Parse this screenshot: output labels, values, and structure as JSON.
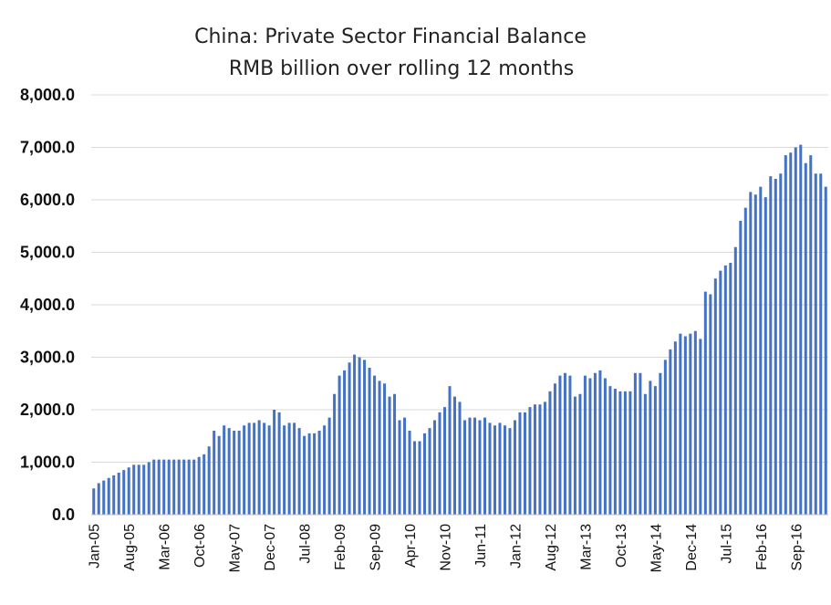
{
  "chart_data": {
    "type": "bar",
    "title": "China: Private Sector Financial Balance",
    "subtitle": "RMB billion over rolling 12 months",
    "xlabel": "",
    "ylabel": "",
    "ylim": [
      0,
      8000
    ],
    "yticks": [
      "0.0",
      "1,000.0",
      "2,000.0",
      "3,000.0",
      "4,000.0",
      "5,000.0",
      "6,000.0",
      "7,000.0",
      "8,000.0"
    ],
    "start_month": "Jan-05",
    "tick_labels": [
      "Jan-05",
      "Aug-05",
      "Mar-06",
      "Oct-06",
      "May-07",
      "Dec-07",
      "Jul-08",
      "Feb-09",
      "Sep-09",
      "Apr-10",
      "Nov-10",
      "Jun-11",
      "Jan-12",
      "Aug-12",
      "Mar-13",
      "Oct-13",
      "May-14",
      "Dec-14",
      "Jul-15",
      "Feb-16",
      "Sep-16"
    ],
    "bar_color": "#4472c4",
    "grid": true,
    "values": [
      500,
      600,
      650,
      700,
      750,
      800,
      850,
      900,
      950,
      950,
      950,
      1000,
      1050,
      1050,
      1050,
      1050,
      1050,
      1050,
      1050,
      1050,
      1050,
      1100,
      1150,
      1300,
      1600,
      1500,
      1700,
      1650,
      1600,
      1600,
      1700,
      1750,
      1750,
      1800,
      1750,
      1700,
      2000,
      1950,
      1700,
      1750,
      1750,
      1650,
      1500,
      1550,
      1550,
      1600,
      1700,
      1850,
      2300,
      2650,
      2750,
      2900,
      3050,
      3000,
      2950,
      2800,
      2650,
      2550,
      2500,
      2250,
      2300,
      1800,
      1850,
      1600,
      1400,
      1400,
      1550,
      1650,
      1800,
      1950,
      2050,
      2450,
      2250,
      2150,
      1800,
      1850,
      1850,
      1800,
      1850,
      1750,
      1700,
      1750,
      1700,
      1650,
      1800,
      1950,
      1950,
      2050,
      2100,
      2100,
      2150,
      2350,
      2500,
      2650,
      2700,
      2650,
      2250,
      2300,
      2650,
      2600,
      2700,
      2750,
      2600,
      2450,
      2400,
      2350,
      2350,
      2350,
      2700,
      2700,
      2300,
      2550,
      2450,
      2700,
      2950,
      3150,
      3300,
      3450,
      3400,
      3450,
      3500,
      3350,
      4250,
      4200,
      4500,
      4650,
      4750,
      4800,
      5100,
      5600,
      5850,
      6150,
      6100,
      6250,
      6050,
      6450,
      6400,
      6500,
      6850,
      6900,
      7000,
      7050,
      6700,
      6850,
      6500,
      6500,
      6250
    ]
  }
}
